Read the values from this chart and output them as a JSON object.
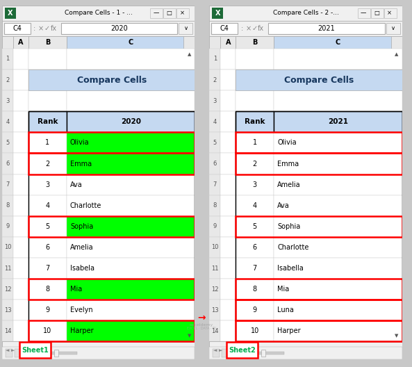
{
  "sheet1": {
    "window_title": "Compare Cells - 1 - ...",
    "cell_ref": "C4",
    "formula_value": "2020",
    "header": "Compare Cells",
    "col_headers": [
      "Rank",
      "2020"
    ],
    "ranks": [
      1,
      2,
      3,
      4,
      5,
      6,
      7,
      8,
      9,
      10
    ],
    "names": [
      "Olivia",
      "Emma",
      "Ava",
      "Charlotte",
      "Sophia",
      "Amelia",
      "Isabela",
      "Mia",
      "Evelyn",
      "Harper"
    ],
    "green_rows": [
      0,
      1,
      4,
      7,
      9
    ],
    "red_border_rows": [
      0,
      1,
      4,
      7,
      9
    ],
    "sheet_tab": "Sheet1"
  },
  "sheet2": {
    "window_title": "Compare Cells - 2 -...",
    "cell_ref": "C4",
    "formula_value": "2021",
    "header": "Compare Cells",
    "col_headers": [
      "Rank",
      "2021"
    ],
    "ranks": [
      1,
      2,
      3,
      4,
      5,
      6,
      7,
      8,
      9,
      10
    ],
    "names": [
      "Olivia",
      "Emma",
      "Amelia",
      "Ava",
      "Sophia",
      "Charlotte",
      "Isabella",
      "Mia",
      "Luna",
      "Harper"
    ],
    "green_rows": [],
    "red_border_rows": [
      0,
      1,
      4,
      7,
      8,
      9
    ],
    "sheet_tab": "Sheet2"
  },
  "colors": {
    "green_fill": "#00FF00",
    "red_border": "#FF0000",
    "header_bg": "#C5D9F1",
    "col_header_bg": "#C5D9F1",
    "title_text": "#17375E",
    "window_bg": "#FFFFFF",
    "toolbar_bg": "#F0F0F0",
    "row_num_bg": "#E8E8E8",
    "excel_green": "#1D6A38",
    "cell_border": "#C0C0C0",
    "table_border": "#000000",
    "scrollbar_bg": "#D4D4D4",
    "scrollbar_thumb": "#ADADAD",
    "sheet_tab_text": "#00B050",
    "outer_bg": "#C8C8C8"
  },
  "layout": {
    "fig_w": 5.93,
    "fig_h": 5.28,
    "dpi": 100
  }
}
